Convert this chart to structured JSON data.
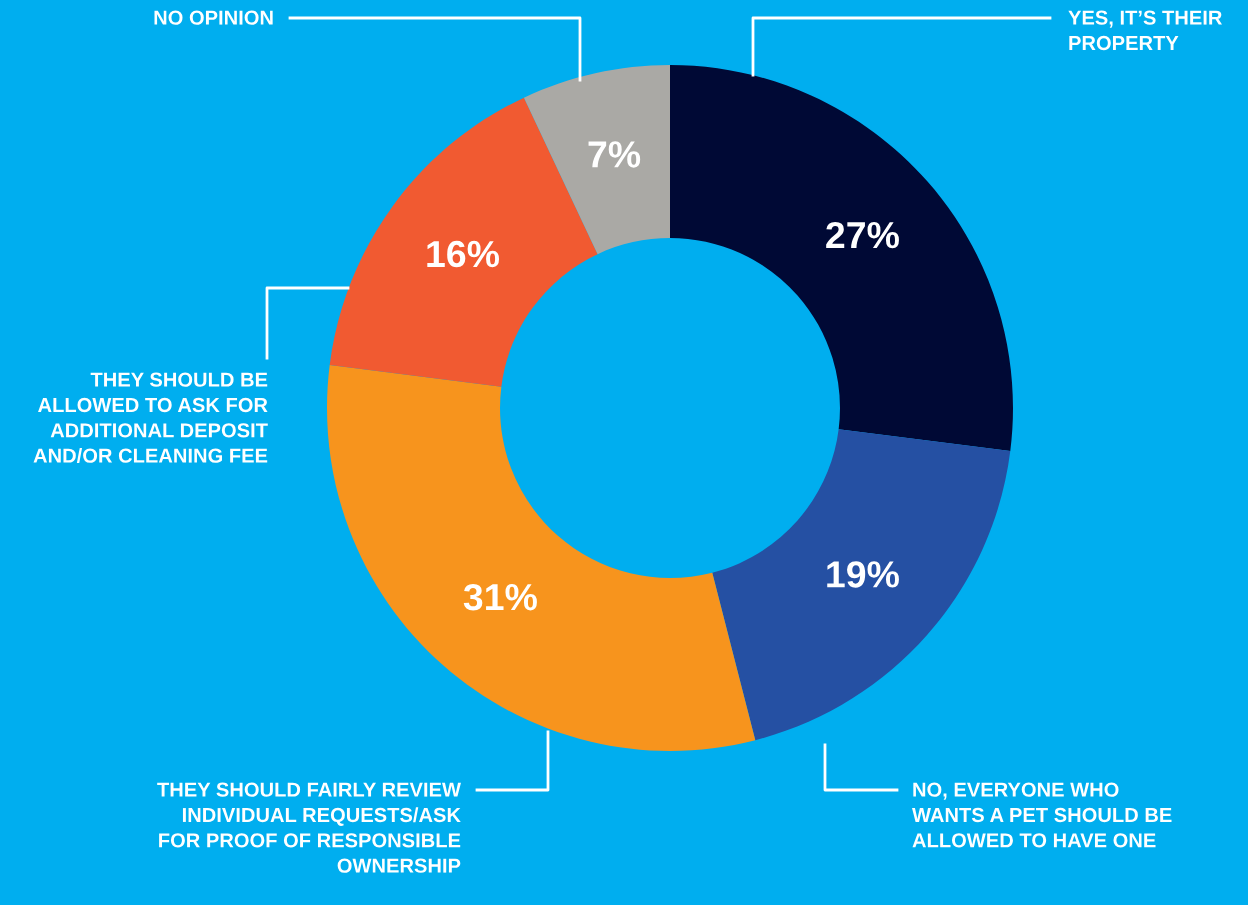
{
  "chart_data": {
    "type": "donut",
    "categories": [
      "YES, IT’S THEIR\nPROPERTY",
      "NO, EVERYONE WHO\nWANTS A PET SHOULD BE\nALLOWED TO HAVE ONE",
      "THEY SHOULD FAIRLY REVIEW\nINDIVIDUAL REQUESTS/ASK\nFOR PROOF OF RESPONSIBLE\nOWNERSHIP",
      "THEY SHOULD BE\nALLOWED TO ASK FOR\nADDITIONAL DEPOSIT\nAND/OR CLEANING FEE",
      "NO OPINION"
    ],
    "values": [
      27,
      19,
      31,
      16,
      7
    ],
    "colors": [
      "#000935",
      "#2550a3",
      "#f7941d",
      "#f15a31",
      "#aaa9a5"
    ],
    "value_labels": [
      "27%",
      "19%",
      "31%",
      "16%",
      "7%"
    ]
  }
}
